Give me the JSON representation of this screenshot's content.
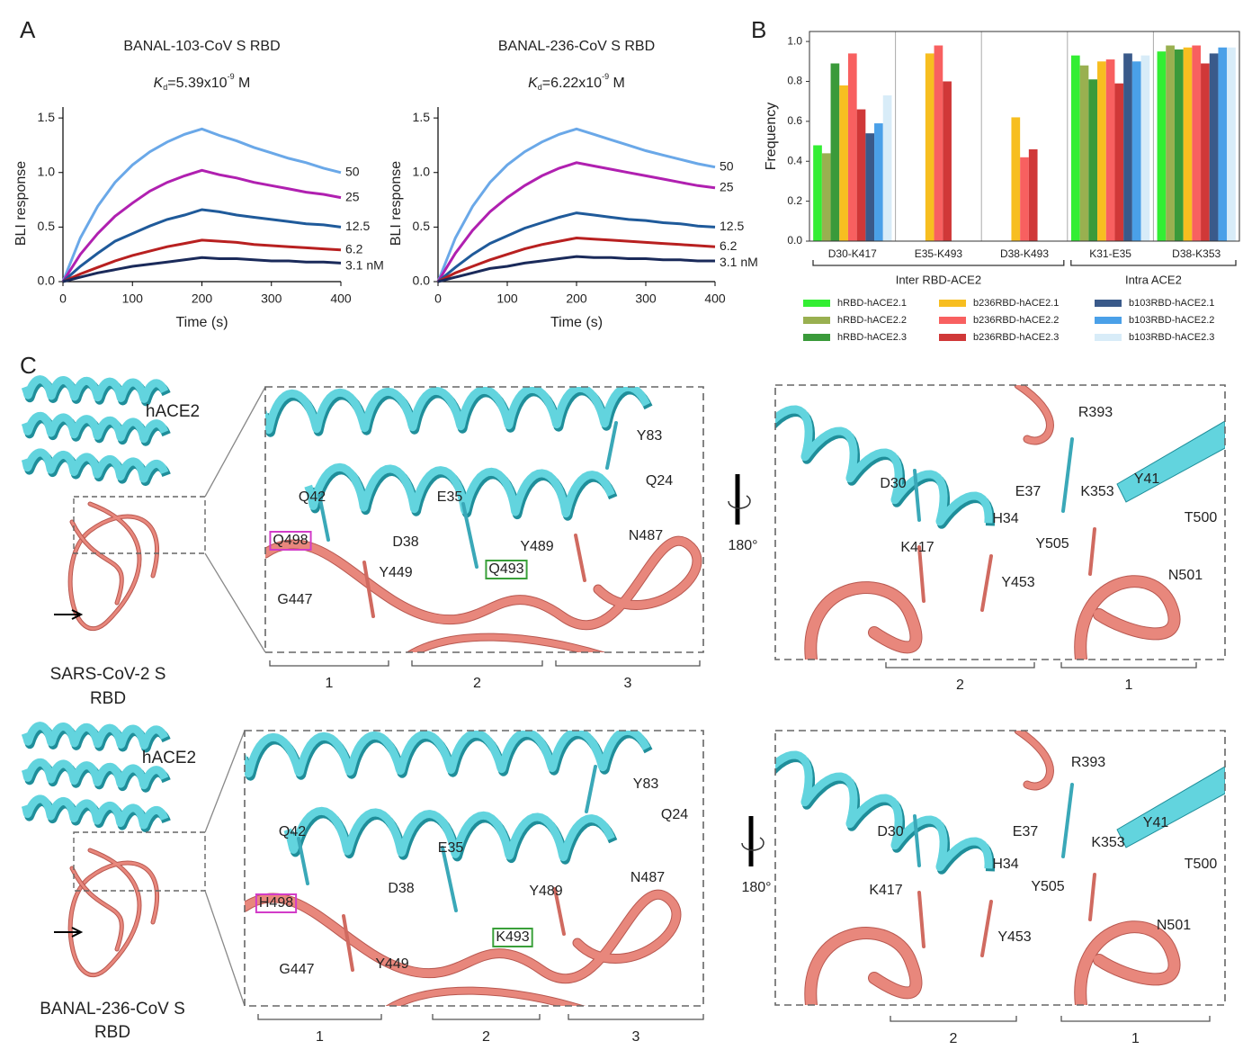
{
  "panels": [
    "A",
    "B",
    "C"
  ],
  "chart_data": [
    {
      "type": "line",
      "title": "BANAL-103-CoV S RBD",
      "subtitle": [
        "K",
        "d",
        "=5.39x10",
        "-9",
        " M"
      ],
      "xlabel": "Time (s)",
      "ylabel": "BLI response",
      "x": [
        0,
        25,
        50,
        75,
        100,
        125,
        150,
        175,
        200,
        225,
        250,
        275,
        300,
        325,
        350,
        375,
        400
      ],
      "xlim": [
        0,
        400
      ],
      "xticks": [
        0,
        100,
        200,
        300,
        400
      ],
      "ylim": [
        0,
        1.6
      ],
      "yticks": [
        {
          "value": 0,
          "label": "0.0"
        },
        0.5,
        {
          "value": 1,
          "label": "1.0"
        },
        1.5
      ],
      "series": [
        {
          "name": "50",
          "color": "#6aa8e8",
          "values": [
            0,
            0.4,
            0.69,
            0.91,
            1.07,
            1.19,
            1.28,
            1.35,
            1.4,
            1.34,
            1.29,
            1.23,
            1.18,
            1.13,
            1.09,
            1.04,
            1.0
          ]
        },
        {
          "name": "25",
          "color": "#b020b0",
          "values": [
            0,
            0.25,
            0.44,
            0.6,
            0.72,
            0.83,
            0.91,
            0.97,
            1.02,
            0.98,
            0.95,
            0.91,
            0.88,
            0.85,
            0.82,
            0.8,
            0.77
          ]
        },
        {
          "name": "12.5",
          "color": "#1f5a9a",
          "values": [
            0,
            0.14,
            0.26,
            0.37,
            0.44,
            0.51,
            0.57,
            0.61,
            0.66,
            0.64,
            0.61,
            0.59,
            0.57,
            0.55,
            0.53,
            0.52,
            0.5
          ]
        },
        {
          "name": "6.2",
          "color": "#b82020",
          "values": [
            0,
            0.07,
            0.13,
            0.19,
            0.24,
            0.28,
            0.32,
            0.35,
            0.38,
            0.37,
            0.36,
            0.34,
            0.33,
            0.32,
            0.31,
            0.3,
            0.29
          ]
        },
        {
          "name": "3.1 nM",
          "color": "#1a2a5a",
          "values": [
            0,
            0.04,
            0.08,
            0.11,
            0.14,
            0.16,
            0.18,
            0.2,
            0.22,
            0.21,
            0.21,
            0.2,
            0.19,
            0.19,
            0.18,
            0.18,
            0.17
          ]
        }
      ]
    },
    {
      "type": "line",
      "title": "BANAL-236-CoV S RBD",
      "subtitle": [
        "K",
        "d",
        "=6.22x10",
        "-9",
        " M"
      ],
      "xlabel": "Time (s)",
      "ylabel": "BLI response",
      "x": [
        0,
        25,
        50,
        75,
        100,
        125,
        150,
        175,
        200,
        225,
        250,
        275,
        300,
        325,
        350,
        375,
        400
      ],
      "xlim": [
        0,
        400
      ],
      "xticks": [
        0,
        100,
        200,
        300,
        400
      ],
      "ylim": [
        0,
        1.6
      ],
      "yticks": [
        {
          "value": 0,
          "label": "0.0"
        },
        0.5,
        {
          "value": 1,
          "label": "1.0"
        },
        1.5
      ],
      "series": [
        {
          "name": "50",
          "color": "#6aa8e8",
          "values": [
            0,
            0.4,
            0.69,
            0.91,
            1.07,
            1.19,
            1.28,
            1.35,
            1.4,
            1.35,
            1.3,
            1.25,
            1.2,
            1.16,
            1.12,
            1.08,
            1.05
          ]
        },
        {
          "name": "25",
          "color": "#b020b0",
          "values": [
            0,
            0.26,
            0.47,
            0.64,
            0.77,
            0.88,
            0.97,
            1.04,
            1.09,
            1.06,
            1.03,
            1.0,
            0.97,
            0.94,
            0.91,
            0.88,
            0.86
          ]
        },
        {
          "name": "12.5",
          "color": "#1f5a9a",
          "values": [
            0,
            0.13,
            0.25,
            0.35,
            0.42,
            0.49,
            0.54,
            0.59,
            0.63,
            0.61,
            0.59,
            0.57,
            0.56,
            0.54,
            0.53,
            0.51,
            0.5
          ]
        },
        {
          "name": "6.2",
          "color": "#b82020",
          "values": [
            0,
            0.08,
            0.14,
            0.2,
            0.25,
            0.3,
            0.34,
            0.37,
            0.4,
            0.39,
            0.38,
            0.37,
            0.36,
            0.35,
            0.34,
            0.33,
            0.32
          ]
        },
        {
          "name": "3.1 nM",
          "color": "#1a2a5a",
          "values": [
            0,
            0.04,
            0.08,
            0.12,
            0.14,
            0.17,
            0.19,
            0.21,
            0.23,
            0.22,
            0.22,
            0.21,
            0.21,
            0.2,
            0.2,
            0.19,
            0.19
          ]
        }
      ]
    },
    {
      "type": "bar",
      "ylabel": "Frequency",
      "categories": [
        "D30-K417",
        "E35-K493",
        "D38-K493",
        "K31-E35",
        "D38-K353"
      ],
      "group_labels": [
        "Inter RBD-ACE2",
        "Intra ACE2"
      ],
      "ylim": [
        0,
        1.05
      ],
      "yticks": [
        {
          "value": 0,
          "label": "0.0"
        },
        0.2,
        0.4,
        0.6,
        0.8,
        {
          "value": 1,
          "label": "1.0"
        }
      ],
      "legend": "bottom",
      "series": [
        {
          "name": "hRBD-hACE2.1",
          "color": "#33ee33",
          "values": [
            0.48,
            null,
            null,
            0.93,
            0.95
          ]
        },
        {
          "name": "hRBD-hACE2.2",
          "color": "#99b050",
          "values": [
            0.44,
            null,
            null,
            0.88,
            0.98
          ]
        },
        {
          "name": "hRBD-hACE2.3",
          "color": "#3a9a3a",
          "values": [
            0.89,
            null,
            null,
            0.81,
            0.96
          ]
        },
        {
          "name": "b236RBD-hACE2.1",
          "color": "#f7be20",
          "values": [
            0.78,
            0.94,
            0.62,
            0.9,
            0.97
          ]
        },
        {
          "name": "b236RBD-hACE2.2",
          "color": "#f86060",
          "values": [
            0.94,
            0.98,
            0.42,
            0.91,
            0.98
          ]
        },
        {
          "name": "b236RBD-hACE2.3",
          "color": "#d03838",
          "values": [
            0.66,
            0.8,
            0.46,
            0.79,
            0.89
          ]
        },
        {
          "name": "b103RBD-hACE2.1",
          "color": "#3a5a8a",
          "values": [
            0.54,
            null,
            null,
            0.94,
            0.94
          ]
        },
        {
          "name": "b103RBD-hACE2.2",
          "color": "#4aa0e8",
          "values": [
            0.59,
            null,
            null,
            0.9,
            0.97
          ]
        },
        {
          "name": "b103RBD-hACE2.3",
          "color": "#d8ecf8",
          "values": [
            0.73,
            null,
            null,
            0.93,
            0.97
          ]
        }
      ]
    }
  ],
  "panel_c": {
    "rows": [
      {
        "overview": [
          "hACE2",
          "SARS-CoV-2 S",
          "RBD"
        ],
        "left_labels": [
          "Q42",
          "Q498",
          "D38",
          "Y449",
          "G447",
          "E35",
          "Q493",
          "Y489",
          "Y83",
          "Q24",
          "N487"
        ],
        "left_regions": [
          "1",
          "2",
          "3"
        ],
        "rotation": "180°",
        "right_labels": [
          "R393",
          "D30",
          "E37",
          "K353",
          "Y41",
          "T500",
          "H34",
          "K417",
          "Y505",
          "N501",
          "Y453"
        ],
        "right_regions": [
          "2",
          "1"
        ]
      },
      {
        "overview": [
          "hACE2",
          "BANAL-236-CoV S",
          "RBD"
        ],
        "left_labels": [
          "Q42",
          "H498",
          "D38",
          "Y449",
          "G447",
          "E35",
          "K493",
          "Y489",
          "Y83",
          "Q24",
          "N487"
        ],
        "left_regions": [
          "1",
          "2",
          "3"
        ],
        "rotation": "180°",
        "right_labels": [
          "R393",
          "D30",
          "E37",
          "K353",
          "Y41",
          "T500",
          "H34",
          "K417",
          "Y505",
          "N501",
          "Y453"
        ],
        "right_regions": [
          "2",
          "1"
        ]
      }
    ]
  }
}
